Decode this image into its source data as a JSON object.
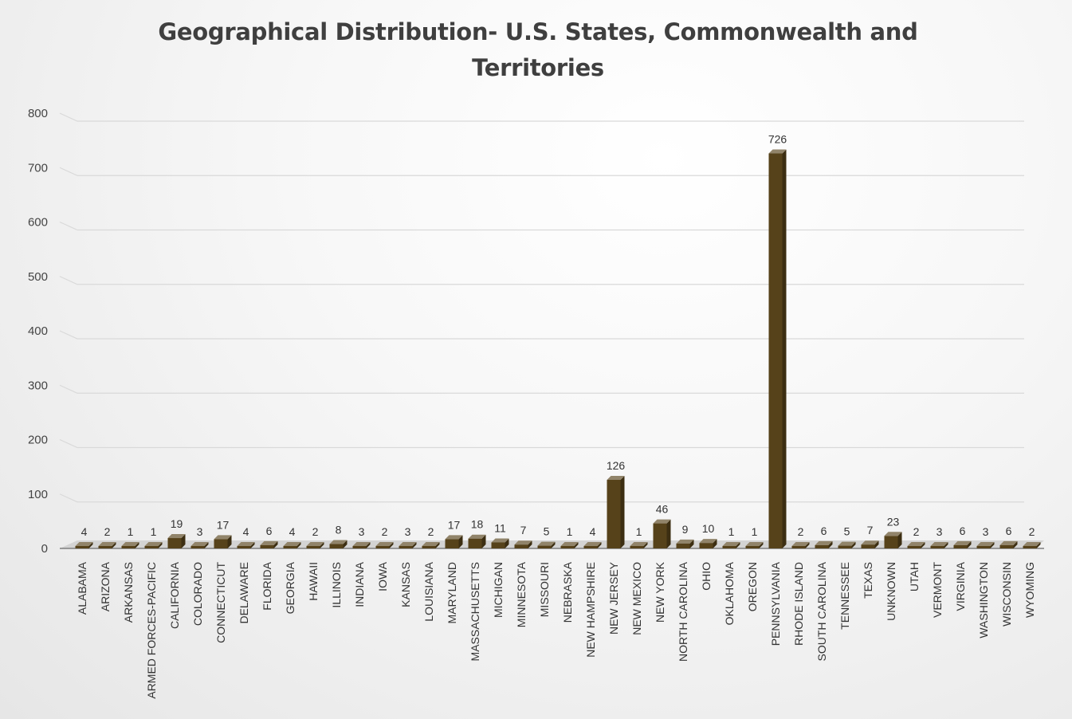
{
  "chart_data": {
    "type": "bar",
    "title": "Geographical Distribution- U.S. States, Commonwealth and Territories",
    "xlabel": "",
    "ylabel": "",
    "ylim": [
      0,
      800
    ],
    "yticks": [
      0,
      100,
      200,
      300,
      400,
      500,
      600,
      700,
      800
    ],
    "grid": true,
    "legend": "none",
    "bar_color": "#56421a",
    "categories": [
      "ALABAMA",
      "ARIZONA",
      "ARKANSAS",
      "ARMED FORCES-PACIFIC",
      "CALIFORNIA",
      "COLORADO",
      "CONNECTICUT",
      "DELAWARE",
      "FLORIDA",
      "GEORGIA",
      "HAWAII",
      "ILLINOIS",
      "INDIANA",
      "IOWA",
      "KANSAS",
      "LOUISIANA",
      "MARYLAND",
      "MASSACHUSETTS",
      "MICHIGAN",
      "MINNESOTA",
      "MISSOURI",
      "NEBRASKA",
      "NEW HAMPSHIRE",
      "NEW JERSEY",
      "NEW MEXICO",
      "NEW YORK",
      "NORTH CAROLINA",
      "OHIO",
      "OKLAHOMA",
      "OREGON",
      "PENNSYLVANIA",
      "RHODE ISLAND",
      "SOUTH CAROLINA",
      "TENNESSEE",
      "TEXAS",
      "UNKNOWN",
      "UTAH",
      "VERMONT",
      "VIRGINIA",
      "WASHINGTON",
      "WISCONSIN",
      "WYOMING"
    ],
    "values": [
      4,
      2,
      1,
      1,
      19,
      3,
      17,
      4,
      6,
      4,
      2,
      8,
      3,
      2,
      3,
      2,
      17,
      18,
      11,
      7,
      5,
      1,
      4,
      126,
      1,
      46,
      9,
      10,
      1,
      1,
      726,
      2,
      6,
      5,
      7,
      23,
      2,
      3,
      6,
      3,
      6,
      2
    ]
  }
}
